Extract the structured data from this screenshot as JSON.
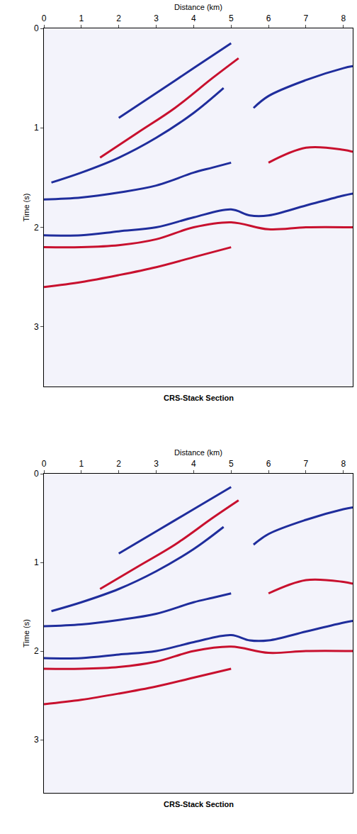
{
  "chart_data": [
    {
      "type": "line",
      "title": "CRS-Stack Section",
      "xlabel": "Distance (km)",
      "ylabel": "Time (s)",
      "xlim": [
        0,
        8.25
      ],
      "ylim": [
        3.6,
        0
      ],
      "xticks": [
        0,
        1,
        2,
        3,
        4,
        5,
        6,
        7,
        8
      ],
      "yticks": [
        0,
        1,
        2,
        3
      ],
      "series": [
        {
          "color": "#1f2d9c",
          "x": [
            0,
            1,
            2,
            3,
            4,
            5,
            5.5,
            6,
            7,
            8,
            8.25
          ],
          "values": [
            2.08,
            2.08,
            2.04,
            2.0,
            1.9,
            1.82,
            1.88,
            1.88,
            1.78,
            1.68,
            1.66
          ]
        },
        {
          "color": "#c8102e",
          "x": [
            0,
            1,
            2,
            3,
            4,
            5,
            6,
            7,
            8.25
          ],
          "values": [
            2.2,
            2.2,
            2.18,
            2.12,
            2.0,
            1.95,
            2.02,
            2.0,
            2.0
          ]
        },
        {
          "color": "#1f2d9c",
          "x": [
            0,
            1,
            2,
            3,
            4,
            4.5,
            5
          ],
          "values": [
            1.72,
            1.7,
            1.65,
            1.58,
            1.45,
            1.4,
            1.35
          ]
        },
        {
          "color": "#c8102e",
          "x": [
            0,
            1,
            2,
            3,
            4,
            5
          ],
          "values": [
            2.6,
            2.55,
            2.48,
            2.4,
            2.3,
            2.2
          ]
        },
        {
          "color": "#1f2d9c",
          "x": [
            5.6,
            6,
            7,
            8,
            8.25
          ],
          "values": [
            0.8,
            0.68,
            0.52,
            0.4,
            0.38
          ]
        },
        {
          "color": "#c8102e",
          "x": [
            6,
            7,
            8,
            8.25
          ],
          "values": [
            1.35,
            1.2,
            1.22,
            1.24
          ]
        },
        {
          "color": "#1f2d9c",
          "x": [
            2,
            3,
            4,
            5
          ],
          "values": [
            0.9,
            0.65,
            0.4,
            0.15
          ]
        },
        {
          "color": "#c8102e",
          "x": [
            1.5,
            2.5,
            3.5,
            4.5,
            5.2
          ],
          "values": [
            1.3,
            1.05,
            0.8,
            0.5,
            0.3
          ]
        },
        {
          "color": "#1f2d9c",
          "x": [
            0.2,
            1,
            2,
            3,
            4,
            4.8
          ],
          "values": [
            1.55,
            1.45,
            1.3,
            1.1,
            0.85,
            0.6
          ]
        }
      ]
    },
    {
      "type": "line",
      "title": "CRS-Stack Section",
      "xlabel": "Distance (km)",
      "ylabel": "Time (s)",
      "xlim": [
        0,
        8.25
      ],
      "ylim": [
        3.6,
        0
      ],
      "xticks": [
        0,
        1,
        2,
        3,
        4,
        5,
        6,
        7,
        8
      ],
      "yticks": [
        0,
        1,
        2,
        3
      ],
      "series": [
        {
          "color": "#1f2d9c",
          "x": [
            0,
            1,
            2,
            3,
            4,
            5,
            5.5,
            6,
            7,
            8,
            8.25
          ],
          "values": [
            2.08,
            2.08,
            2.04,
            2.0,
            1.9,
            1.82,
            1.88,
            1.88,
            1.78,
            1.68,
            1.66
          ]
        },
        {
          "color": "#c8102e",
          "x": [
            0,
            1,
            2,
            3,
            4,
            5,
            6,
            7,
            8.25
          ],
          "values": [
            2.2,
            2.2,
            2.18,
            2.12,
            2.0,
            1.95,
            2.02,
            2.0,
            2.0
          ]
        },
        {
          "color": "#1f2d9c",
          "x": [
            0,
            1,
            2,
            3,
            4,
            4.5,
            5
          ],
          "values": [
            1.72,
            1.7,
            1.65,
            1.58,
            1.45,
            1.4,
            1.35
          ]
        },
        {
          "color": "#c8102e",
          "x": [
            0,
            1,
            2,
            3,
            4,
            5
          ],
          "values": [
            2.6,
            2.55,
            2.48,
            2.4,
            2.3,
            2.2
          ]
        },
        {
          "color": "#1f2d9c",
          "x": [
            5.6,
            6,
            7,
            8,
            8.25
          ],
          "values": [
            0.8,
            0.68,
            0.52,
            0.4,
            0.38
          ]
        },
        {
          "color": "#c8102e",
          "x": [
            6,
            7,
            8,
            8.25
          ],
          "values": [
            1.35,
            1.2,
            1.22,
            1.24
          ]
        },
        {
          "color": "#1f2d9c",
          "x": [
            2,
            3,
            4,
            5
          ],
          "values": [
            0.9,
            0.65,
            0.4,
            0.15
          ]
        },
        {
          "color": "#c8102e",
          "x": [
            1.5,
            2.5,
            3.5,
            4.5,
            5.2
          ],
          "values": [
            1.3,
            1.05,
            0.8,
            0.5,
            0.3
          ]
        },
        {
          "color": "#1f2d9c",
          "x": [
            0.2,
            1,
            2,
            3,
            4,
            4.8
          ],
          "values": [
            1.55,
            1.45,
            1.3,
            1.1,
            0.85,
            0.6
          ]
        }
      ]
    }
  ]
}
